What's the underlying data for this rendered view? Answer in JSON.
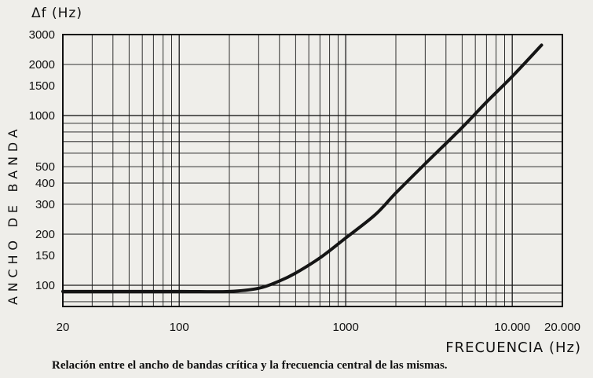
{
  "chart_data": {
    "type": "line",
    "title": "",
    "ylabel_symbol": "Δf (Hz)",
    "ylabel": "ANCHO DE BANDA",
    "xlabel": "FRECUENCIA (Hz)",
    "x_scale": "log",
    "y_scale": "log",
    "xlim": [
      20,
      20000
    ],
    "ylim": [
      75,
      3000
    ],
    "x_ticks": [
      {
        "value": 20,
        "label": "20"
      },
      {
        "value": 100,
        "label": "100"
      },
      {
        "value": 1000,
        "label": "1000"
      },
      {
        "value": 10000,
        "label": "10.000"
      },
      {
        "value": 20000,
        "label": "20.000"
      }
    ],
    "y_ticks": [
      {
        "value": 100,
        "label": "100"
      },
      {
        "value": 150,
        "label": "150"
      },
      {
        "value": 200,
        "label": "200"
      },
      {
        "value": 300,
        "label": "300"
      },
      {
        "value": 400,
        "label": "400"
      },
      {
        "value": 500,
        "label": "500"
      },
      {
        "value": 1000,
        "label": "1000"
      },
      {
        "value": 1500,
        "label": "1500"
      },
      {
        "value": 2000,
        "label": "2000"
      },
      {
        "value": 3000,
        "label": "3000"
      }
    ],
    "grid": true,
    "series": [
      {
        "x": [
          20,
          50,
          100,
          200,
          300,
          400,
          500,
          700,
          1000,
          1500,
          2000,
          3000,
          5000,
          7000,
          10000,
          15000
        ],
        "y": [
          92,
          92,
          92,
          92,
          96,
          106,
          118,
          145,
          190,
          260,
          350,
          520,
          850,
          1200,
          1700,
          2600
        ]
      }
    ]
  },
  "caption": "Relación entre el ancho de bandas crítica y la frecuencia central de las mismas."
}
